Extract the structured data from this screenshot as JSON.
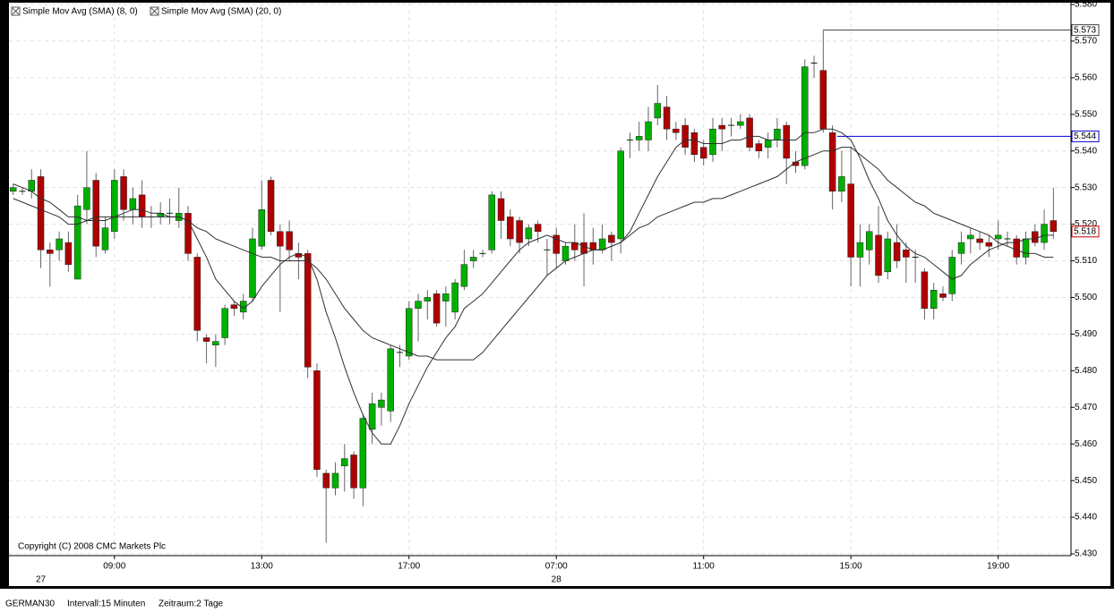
{
  "chart_data": {
    "type": "candlestick",
    "legend": [
      "Simple Mov Avg (SMA) (8, 0)",
      "Simple Mov Avg (SMA) (20, 0)"
    ],
    "copyright": "Copyright (C) 2008 CMC Markets Plc",
    "footer": {
      "symbol": "GERMAN30",
      "interval": "Intervall:15 Minuten",
      "range": "Zeitraum:2 Tage"
    },
    "categories": [
      null,
      null,
      null,
      null,
      null,
      null,
      null,
      null,
      null,
      null,
      null,
      "09:00",
      null,
      null,
      null,
      null,
      null,
      null,
      null,
      null,
      null,
      null,
      null,
      null,
      null,
      null,
      null,
      "13:00",
      null,
      null,
      null,
      null,
      null,
      null,
      null,
      null,
      null,
      null,
      null,
      null,
      null,
      null,
      null,
      "17:00",
      null,
      null,
      null,
      null,
      null,
      null,
      null,
      null,
      null,
      null,
      null,
      null,
      null,
      null,
      null,
      "07:00",
      null,
      null,
      null,
      null,
      null,
      null,
      null,
      null,
      null,
      null,
      null,
      null,
      null,
      null,
      null,
      "11:00",
      null,
      null,
      null,
      null,
      null,
      null,
      null,
      null,
      null,
      null,
      null,
      null,
      null,
      null,
      null,
      "15:00",
      null,
      null,
      null,
      null,
      null,
      null,
      null,
      null,
      null,
      null,
      null,
      null,
      null,
      null,
      null,
      "19:00",
      null,
      null,
      null,
      null,
      null,
      null
    ],
    "date_labels": [
      null,
      null,
      null,
      "27",
      null,
      null,
      null,
      null,
      null,
      null,
      null,
      null,
      null,
      null,
      null,
      null,
      null,
      null,
      null,
      null,
      null,
      null,
      null,
      null,
      null,
      null,
      null,
      null,
      null,
      null,
      null,
      null,
      null,
      null,
      null,
      null,
      null,
      null,
      null,
      null,
      null,
      null,
      null,
      null,
      null,
      null,
      null,
      null,
      null,
      null,
      null,
      null,
      null,
      null,
      null,
      null,
      null,
      null,
      null,
      "28",
      null,
      null,
      null,
      null,
      null,
      null,
      null,
      null,
      null,
      null,
      null,
      null,
      null,
      null,
      null,
      null,
      null,
      null,
      null,
      null,
      null,
      null,
      null,
      null,
      null,
      null,
      null,
      null,
      null,
      null,
      null,
      null,
      null,
      null,
      null,
      null,
      null,
      null,
      null,
      null,
      null,
      null,
      null,
      null,
      null,
      null,
      null,
      null,
      null,
      null,
      null,
      null,
      null,
      null
    ],
    "open": [
      5.529,
      5.529,
      5.529,
      5.533,
      5.513,
      5.513,
      5.515,
      5.505,
      5.524,
      5.532,
      5.513,
      5.518,
      5.533,
      5.524,
      5.528,
      5.522,
      5.522,
      5.523,
      5.521,
      5.523,
      5.511,
      5.489,
      5.487,
      5.489,
      5.498,
      5.496,
      5.5,
      5.514,
      5.532,
      5.518,
      5.518,
      5.512,
      5.512,
      5.48,
      5.452,
      5.448,
      5.454,
      5.457,
      5.448,
      5.464,
      5.47,
      5.469,
      5.485,
      5.484,
      5.497,
      5.499,
      5.501,
      5.499,
      5.496,
      5.503,
      5.51,
      5.512,
      5.513,
      5.527,
      5.522,
      5.521,
      5.516,
      5.52,
      5.513,
      5.517,
      5.51,
      5.515,
      5.515,
      5.515,
      5.513,
      5.517,
      5.516,
      5.543,
      5.543,
      5.543,
      5.549,
      5.552,
      5.546,
      5.547,
      5.545,
      5.541,
      5.539,
      5.547,
      5.547,
      5.547,
      5.549,
      5.542,
      5.541,
      5.543,
      5.547,
      5.537,
      5.536,
      5.564,
      5.562,
      5.545,
      5.529,
      5.531,
      5.511,
      5.513,
      5.517,
      5.507,
      5.515,
      5.513,
      5.511,
      5.507,
      5.497,
      5.501,
      5.501,
      5.512,
      5.516,
      5.516,
      5.515,
      5.516,
      5.516,
      5.516,
      5.511,
      5.518,
      5.515,
      5.521
    ],
    "high": [
      5.531,
      5.53,
      5.535,
      5.535,
      5.515,
      5.518,
      5.518,
      5.528,
      5.54,
      5.534,
      5.522,
      5.535,
      5.535,
      5.53,
      5.532,
      5.525,
      5.526,
      5.527,
      5.53,
      5.525,
      5.512,
      5.49,
      5.49,
      5.498,
      5.499,
      5.501,
      5.519,
      5.532,
      5.533,
      5.52,
      5.521,
      5.515,
      5.513,
      5.482,
      5.453,
      5.455,
      5.46,
      5.458,
      5.468,
      5.474,
      5.474,
      5.487,
      5.487,
      5.499,
      5.501,
      5.502,
      5.502,
      5.503,
      5.505,
      5.513,
      5.513,
      5.513,
      5.529,
      5.529,
      5.524,
      5.522,
      5.52,
      5.521,
      5.516,
      5.519,
      5.515,
      5.52,
      5.523,
      5.519,
      5.52,
      5.518,
      5.541,
      5.545,
      5.548,
      5.552,
      5.558,
      5.555,
      5.548,
      5.549,
      5.546,
      5.543,
      5.549,
      5.549,
      5.549,
      5.55,
      5.55,
      5.543,
      5.545,
      5.549,
      5.548,
      5.54,
      5.565,
      5.566,
      5.573,
      5.547,
      5.54,
      5.541,
      5.52,
      5.52,
      5.525,
      5.518,
      5.52,
      5.515,
      5.513,
      5.508,
      5.504,
      5.503,
      5.513,
      5.518,
      5.519,
      5.518,
      5.517,
      5.521,
      5.518,
      5.517,
      5.518,
      5.52,
      5.524,
      5.53
    ],
    "low": [
      5.528,
      5.528,
      5.527,
      5.508,
      5.503,
      5.51,
      5.507,
      5.505,
      5.52,
      5.511,
      5.512,
      5.516,
      5.521,
      5.52,
      5.519,
      5.519,
      5.52,
      5.52,
      5.519,
      5.51,
      5.488,
      5.482,
      5.481,
      5.487,
      5.495,
      5.494,
      5.499,
      5.513,
      5.517,
      5.496,
      5.51,
      5.505,
      5.478,
      5.451,
      5.433,
      5.446,
      5.447,
      5.445,
      5.443,
      5.46,
      5.465,
      5.466,
      5.481,
      5.483,
      5.488,
      5.494,
      5.492,
      5.492,
      5.494,
      5.502,
      5.508,
      5.511,
      5.512,
      5.516,
      5.514,
      5.512,
      5.514,
      5.515,
      5.506,
      5.508,
      5.509,
      5.51,
      5.503,
      5.509,
      5.512,
      5.51,
      5.512,
      5.538,
      5.54,
      5.54,
      5.547,
      5.543,
      5.543,
      5.539,
      5.537,
      5.536,
      5.537,
      5.54,
      5.544,
      5.546,
      5.54,
      5.538,
      5.538,
      5.541,
      5.531,
      5.534,
      5.535,
      5.56,
      5.545,
      5.524,
      5.526,
      5.503,
      5.503,
      5.509,
      5.504,
      5.505,
      5.508,
      5.504,
      5.504,
      5.494,
      5.494,
      5.499,
      5.499,
      5.509,
      5.512,
      5.513,
      5.511,
      5.513,
      5.514,
      5.509,
      5.509,
      5.514,
      5.513,
      5.516
    ],
    "close": [
      5.53,
      5.529,
      5.532,
      5.513,
      5.512,
      5.516,
      5.509,
      5.525,
      5.53,
      5.514,
      5.519,
      5.532,
      5.524,
      5.527,
      5.522,
      5.522,
      5.523,
      5.523,
      5.523,
      5.512,
      5.491,
      5.488,
      5.488,
      5.497,
      5.497,
      5.499,
      5.516,
      5.524,
      5.518,
      5.514,
      5.513,
      5.511,
      5.481,
      5.453,
      5.448,
      5.452,
      5.456,
      5.448,
      5.467,
      5.471,
      5.472,
      5.486,
      5.485,
      5.497,
      5.499,
      5.5,
      5.493,
      5.501,
      5.504,
      5.509,
      5.511,
      5.512,
      5.528,
      5.521,
      5.516,
      5.515,
      5.519,
      5.518,
      5.513,
      5.512,
      5.514,
      5.513,
      5.512,
      5.513,
      5.516,
      5.515,
      5.54,
      5.543,
      5.544,
      5.548,
      5.553,
      5.546,
      5.545,
      5.541,
      5.539,
      5.538,
      5.546,
      5.546,
      5.547,
      5.548,
      5.541,
      5.54,
      5.543,
      5.546,
      5.538,
      5.536,
      5.563,
      5.564,
      5.546,
      5.529,
      5.533,
      5.511,
      5.515,
      5.518,
      5.506,
      5.516,
      5.51,
      5.511,
      5.511,
      5.497,
      5.502,
      5.5,
      5.511,
      5.515,
      5.517,
      5.515,
      5.514,
      5.517,
      5.516,
      5.511,
      5.516,
      5.515,
      5.52,
      5.518
    ],
    "up_color": "#00b000",
    "down_color": "#b00000",
    "series": [
      {
        "name": "Simple Mov Avg (SMA) (8, 0)",
        "color": "#303030",
        "values": [
          5.527,
          5.526,
          5.525,
          5.524,
          5.523,
          5.522,
          5.52,
          5.52,
          5.521,
          5.522,
          5.522,
          5.522,
          5.523,
          5.524,
          5.524,
          5.523,
          5.523,
          5.522,
          5.522,
          5.521,
          5.516,
          5.511,
          5.505,
          5.502,
          5.499,
          5.497,
          5.499,
          5.503,
          5.506,
          5.509,
          5.511,
          5.512,
          5.511,
          5.505,
          5.496,
          5.489,
          5.481,
          5.474,
          5.468,
          5.463,
          5.46,
          5.46,
          5.465,
          5.471,
          5.476,
          5.481,
          5.485,
          5.489,
          5.492,
          5.497,
          5.499,
          5.501,
          5.504,
          5.507,
          5.51,
          5.513,
          5.515,
          5.516,
          5.517,
          5.516,
          5.515,
          5.515,
          5.514,
          5.513,
          5.513,
          5.514,
          5.515,
          5.518,
          5.523,
          5.528,
          5.533,
          5.537,
          5.541,
          5.543,
          5.543,
          5.542,
          5.542,
          5.542,
          5.543,
          5.543,
          5.544,
          5.544,
          5.543,
          5.543,
          5.543,
          5.543,
          5.545,
          5.545,
          5.546,
          5.546,
          5.545,
          5.543,
          5.538,
          5.532,
          5.527,
          5.521,
          5.517,
          5.514,
          5.512,
          5.511,
          5.509,
          5.507,
          5.505,
          5.506,
          5.509,
          5.511,
          5.513,
          5.514,
          5.515,
          5.515,
          5.516,
          5.516,
          5.517,
          5.517
        ]
      },
      {
        "name": "Simple Mov Avg (SMA) (20, 0)",
        "color": "#303030",
        "values": [
          5.531,
          5.53,
          5.529,
          5.527,
          5.526,
          5.524,
          5.522,
          5.522,
          5.521,
          5.521,
          5.521,
          5.522,
          5.522,
          5.522,
          5.522,
          5.522,
          5.522,
          5.522,
          5.522,
          5.521,
          5.519,
          5.518,
          5.516,
          5.515,
          5.514,
          5.513,
          5.512,
          5.511,
          5.511,
          5.51,
          5.51,
          5.51,
          5.51,
          5.508,
          5.505,
          5.501,
          5.497,
          5.494,
          5.491,
          5.489,
          5.488,
          5.487,
          5.486,
          5.485,
          5.484,
          5.484,
          5.483,
          5.483,
          5.483,
          5.483,
          5.483,
          5.485,
          5.488,
          5.491,
          5.494,
          5.497,
          5.5,
          5.503,
          5.506,
          5.508,
          5.51,
          5.511,
          5.512,
          5.513,
          5.513,
          5.514,
          5.515,
          5.517,
          5.519,
          5.52,
          5.522,
          5.523,
          5.524,
          5.525,
          5.526,
          5.526,
          5.527,
          5.527,
          5.528,
          5.529,
          5.53,
          5.531,
          5.532,
          5.533,
          5.535,
          5.537,
          5.538,
          5.539,
          5.54,
          5.54,
          5.541,
          5.541,
          5.539,
          5.537,
          5.535,
          5.532,
          5.53,
          5.528,
          5.526,
          5.525,
          5.523,
          5.522,
          5.521,
          5.52,
          5.519,
          5.518,
          5.517,
          5.515,
          5.514,
          5.513,
          5.512,
          5.512,
          5.511,
          5.511
        ]
      }
    ],
    "price_markers": [
      {
        "value": 5.573,
        "color": "#404040",
        "line": true
      },
      {
        "value": 5.544,
        "color": "#0000cc",
        "line": true
      },
      {
        "value": 5.518,
        "color": "#cc0000",
        "line": false
      }
    ],
    "ylim": [
      5.43,
      5.58
    ],
    "yticks": [
      {
        "value": 5.43,
        "label": "5.430"
      },
      {
        "value": 5.44,
        "label": "5.440"
      },
      {
        "value": 5.45,
        "label": "5.450"
      },
      {
        "value": 5.46,
        "label": "5.460"
      },
      {
        "value": 5.47,
        "label": "5.470"
      },
      {
        "value": 5.48,
        "label": "5.480"
      },
      {
        "value": 5.49,
        "label": "5.490"
      },
      {
        "value": 5.5,
        "label": "5.500"
      },
      {
        "value": 5.51,
        "label": "5.510"
      },
      {
        "value": 5.52,
        "label": "5.520"
      },
      {
        "value": 5.53,
        "label": "5.530"
      },
      {
        "value": 5.54,
        "label": "5.540"
      },
      {
        "value": 5.55,
        "label": "5.550"
      },
      {
        "value": 5.56,
        "label": "5.560"
      },
      {
        "value": 5.57,
        "label": "5.570"
      },
      {
        "value": 5.58,
        "label": "5.580"
      }
    ],
    "grid": true
  }
}
